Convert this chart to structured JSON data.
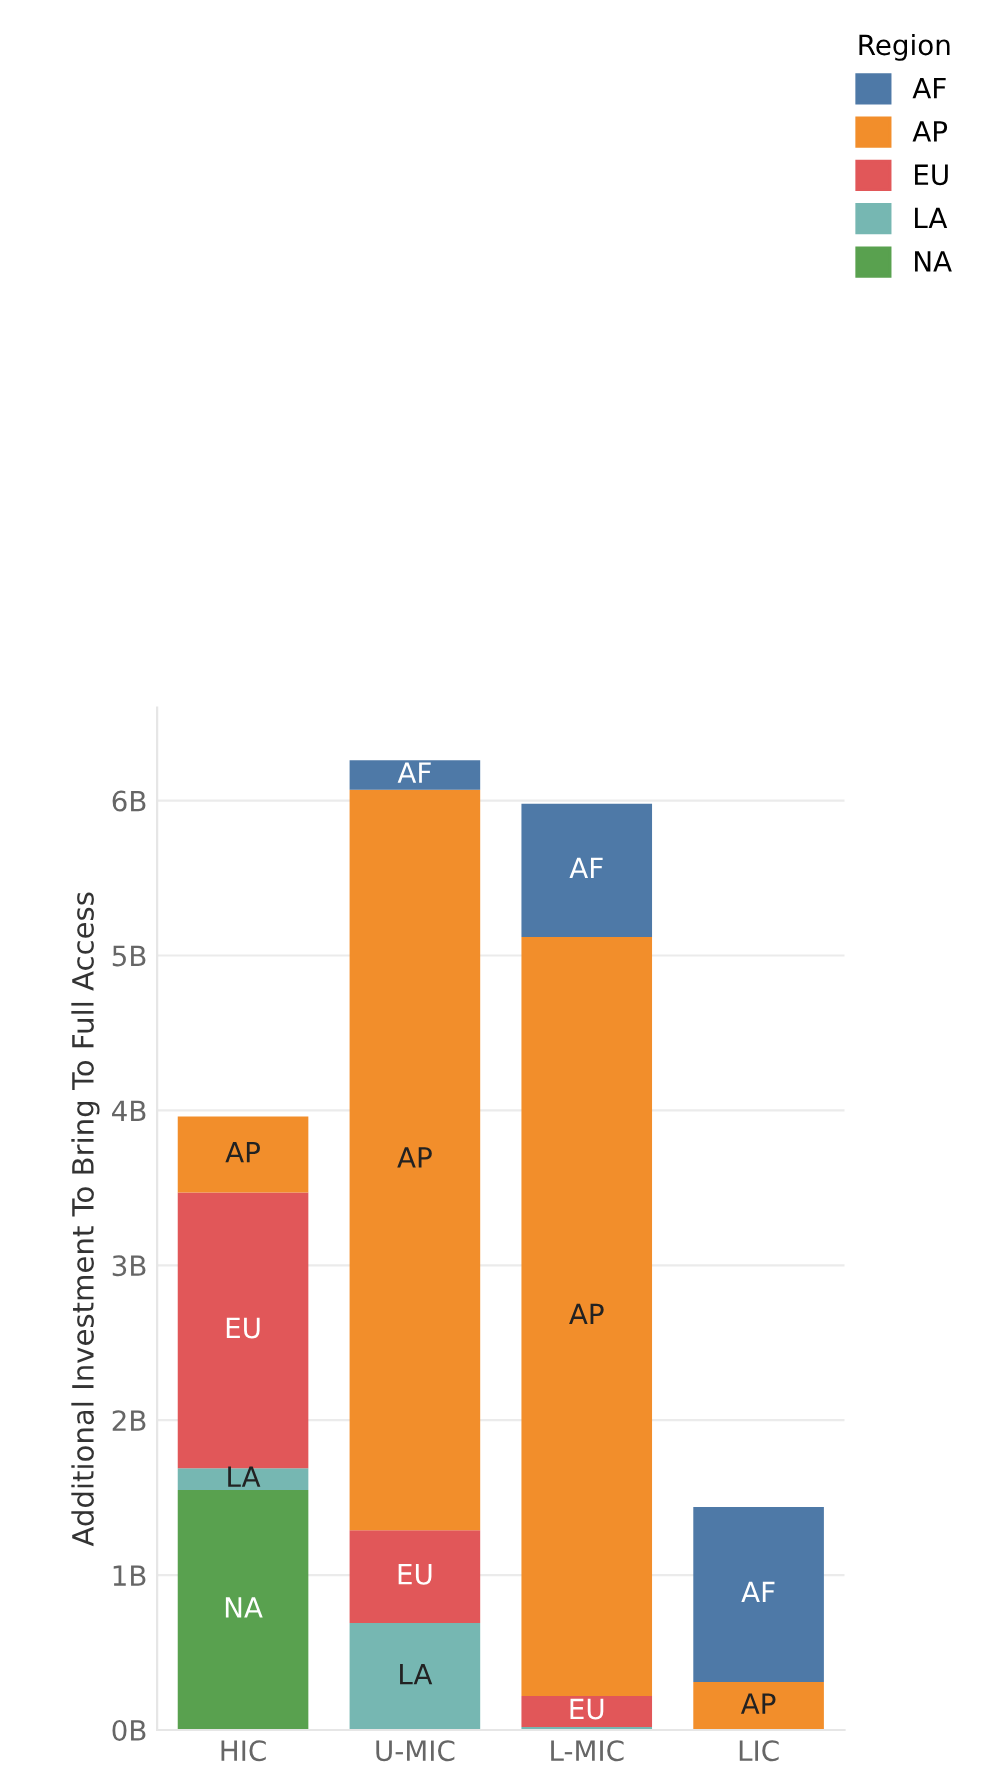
{
  "chart_data": {
    "type": "bar",
    "stacked": true,
    "ylabel": "Additional Investment To Bring To Full Access",
    "legend_title": "Region",
    "legend": "top right",
    "grid": "y",
    "categories": [
      "HIC",
      "U-MIC",
      "L-MIC",
      "LIC"
    ],
    "series": [
      {
        "name": "NA",
        "color": "#59a14f",
        "values": [
          1.55,
          null,
          null,
          null
        ]
      },
      {
        "name": "LA",
        "color": "#76b7b2",
        "values": [
          0.14,
          0.69,
          0.02,
          null
        ]
      },
      {
        "name": "EU",
        "color": "#e15759",
        "values": [
          1.78,
          0.6,
          0.2,
          null
        ]
      },
      {
        "name": "AP",
        "color": "#f28e2b",
        "values": [
          0.49,
          4.78,
          4.9,
          0.31
        ]
      },
      {
        "name": "AF",
        "color": "#4e79a7",
        "values": [
          null,
          0.19,
          0.86,
          1.13
        ]
      }
    ],
    "ylim": [
      0,
      6.6
    ],
    "yticks": [
      {
        "value": 0,
        "label": "0B"
      },
      {
        "value": 1,
        "label": "1B"
      },
      {
        "value": 2,
        "label": "2B"
      },
      {
        "value": 3,
        "label": "3B"
      },
      {
        "value": 4,
        "label": "4B"
      },
      {
        "value": 5,
        "label": "5B"
      },
      {
        "value": 6,
        "label": "6B"
      }
    ]
  }
}
